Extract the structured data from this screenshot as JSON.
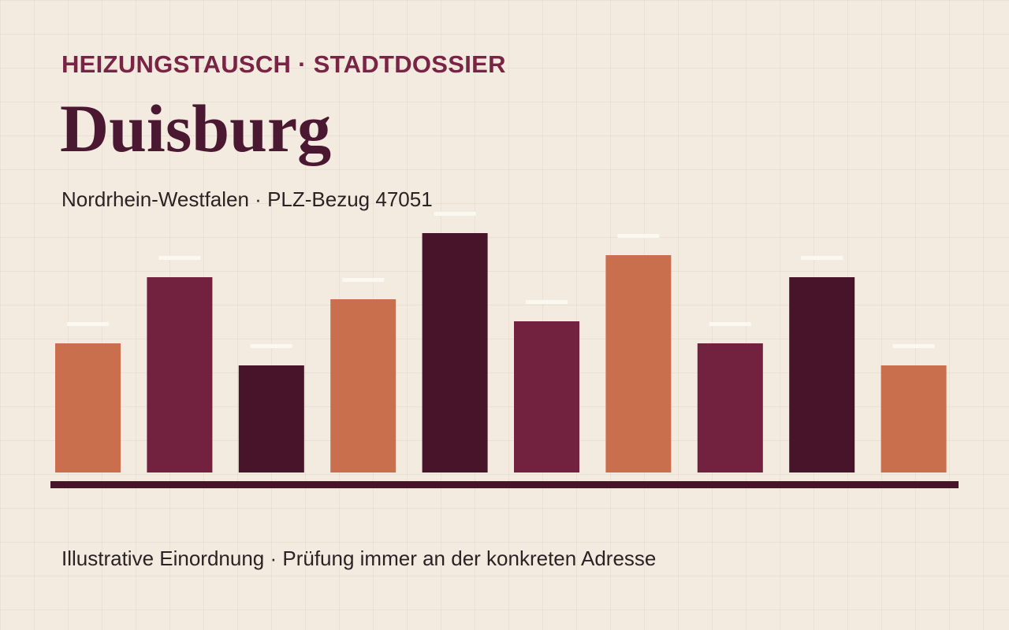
{
  "chart_data": {
    "type": "bar",
    "kicker": "HEIZUNGSTAUSCH · STADTDOSSIER",
    "title": "Duisburg",
    "subtitle": "Nordrhein-Westfalen · PLZ-Bezug 47051",
    "footer": "Illustrative Einordnung · Prüfung immer an der konkreten Adresse",
    "values": [
      164,
      248,
      136,
      220,
      304,
      192,
      276,
      164,
      248,
      136
    ],
    "colors": [
      "#c96f4e",
      "#72223f",
      "#47142a",
      "#c96f4e",
      "#47142a",
      "#72223f",
      "#c96f4e",
      "#72223f",
      "#47142a",
      "#c96f4e"
    ],
    "ylim": [
      0,
      304
    ]
  }
}
